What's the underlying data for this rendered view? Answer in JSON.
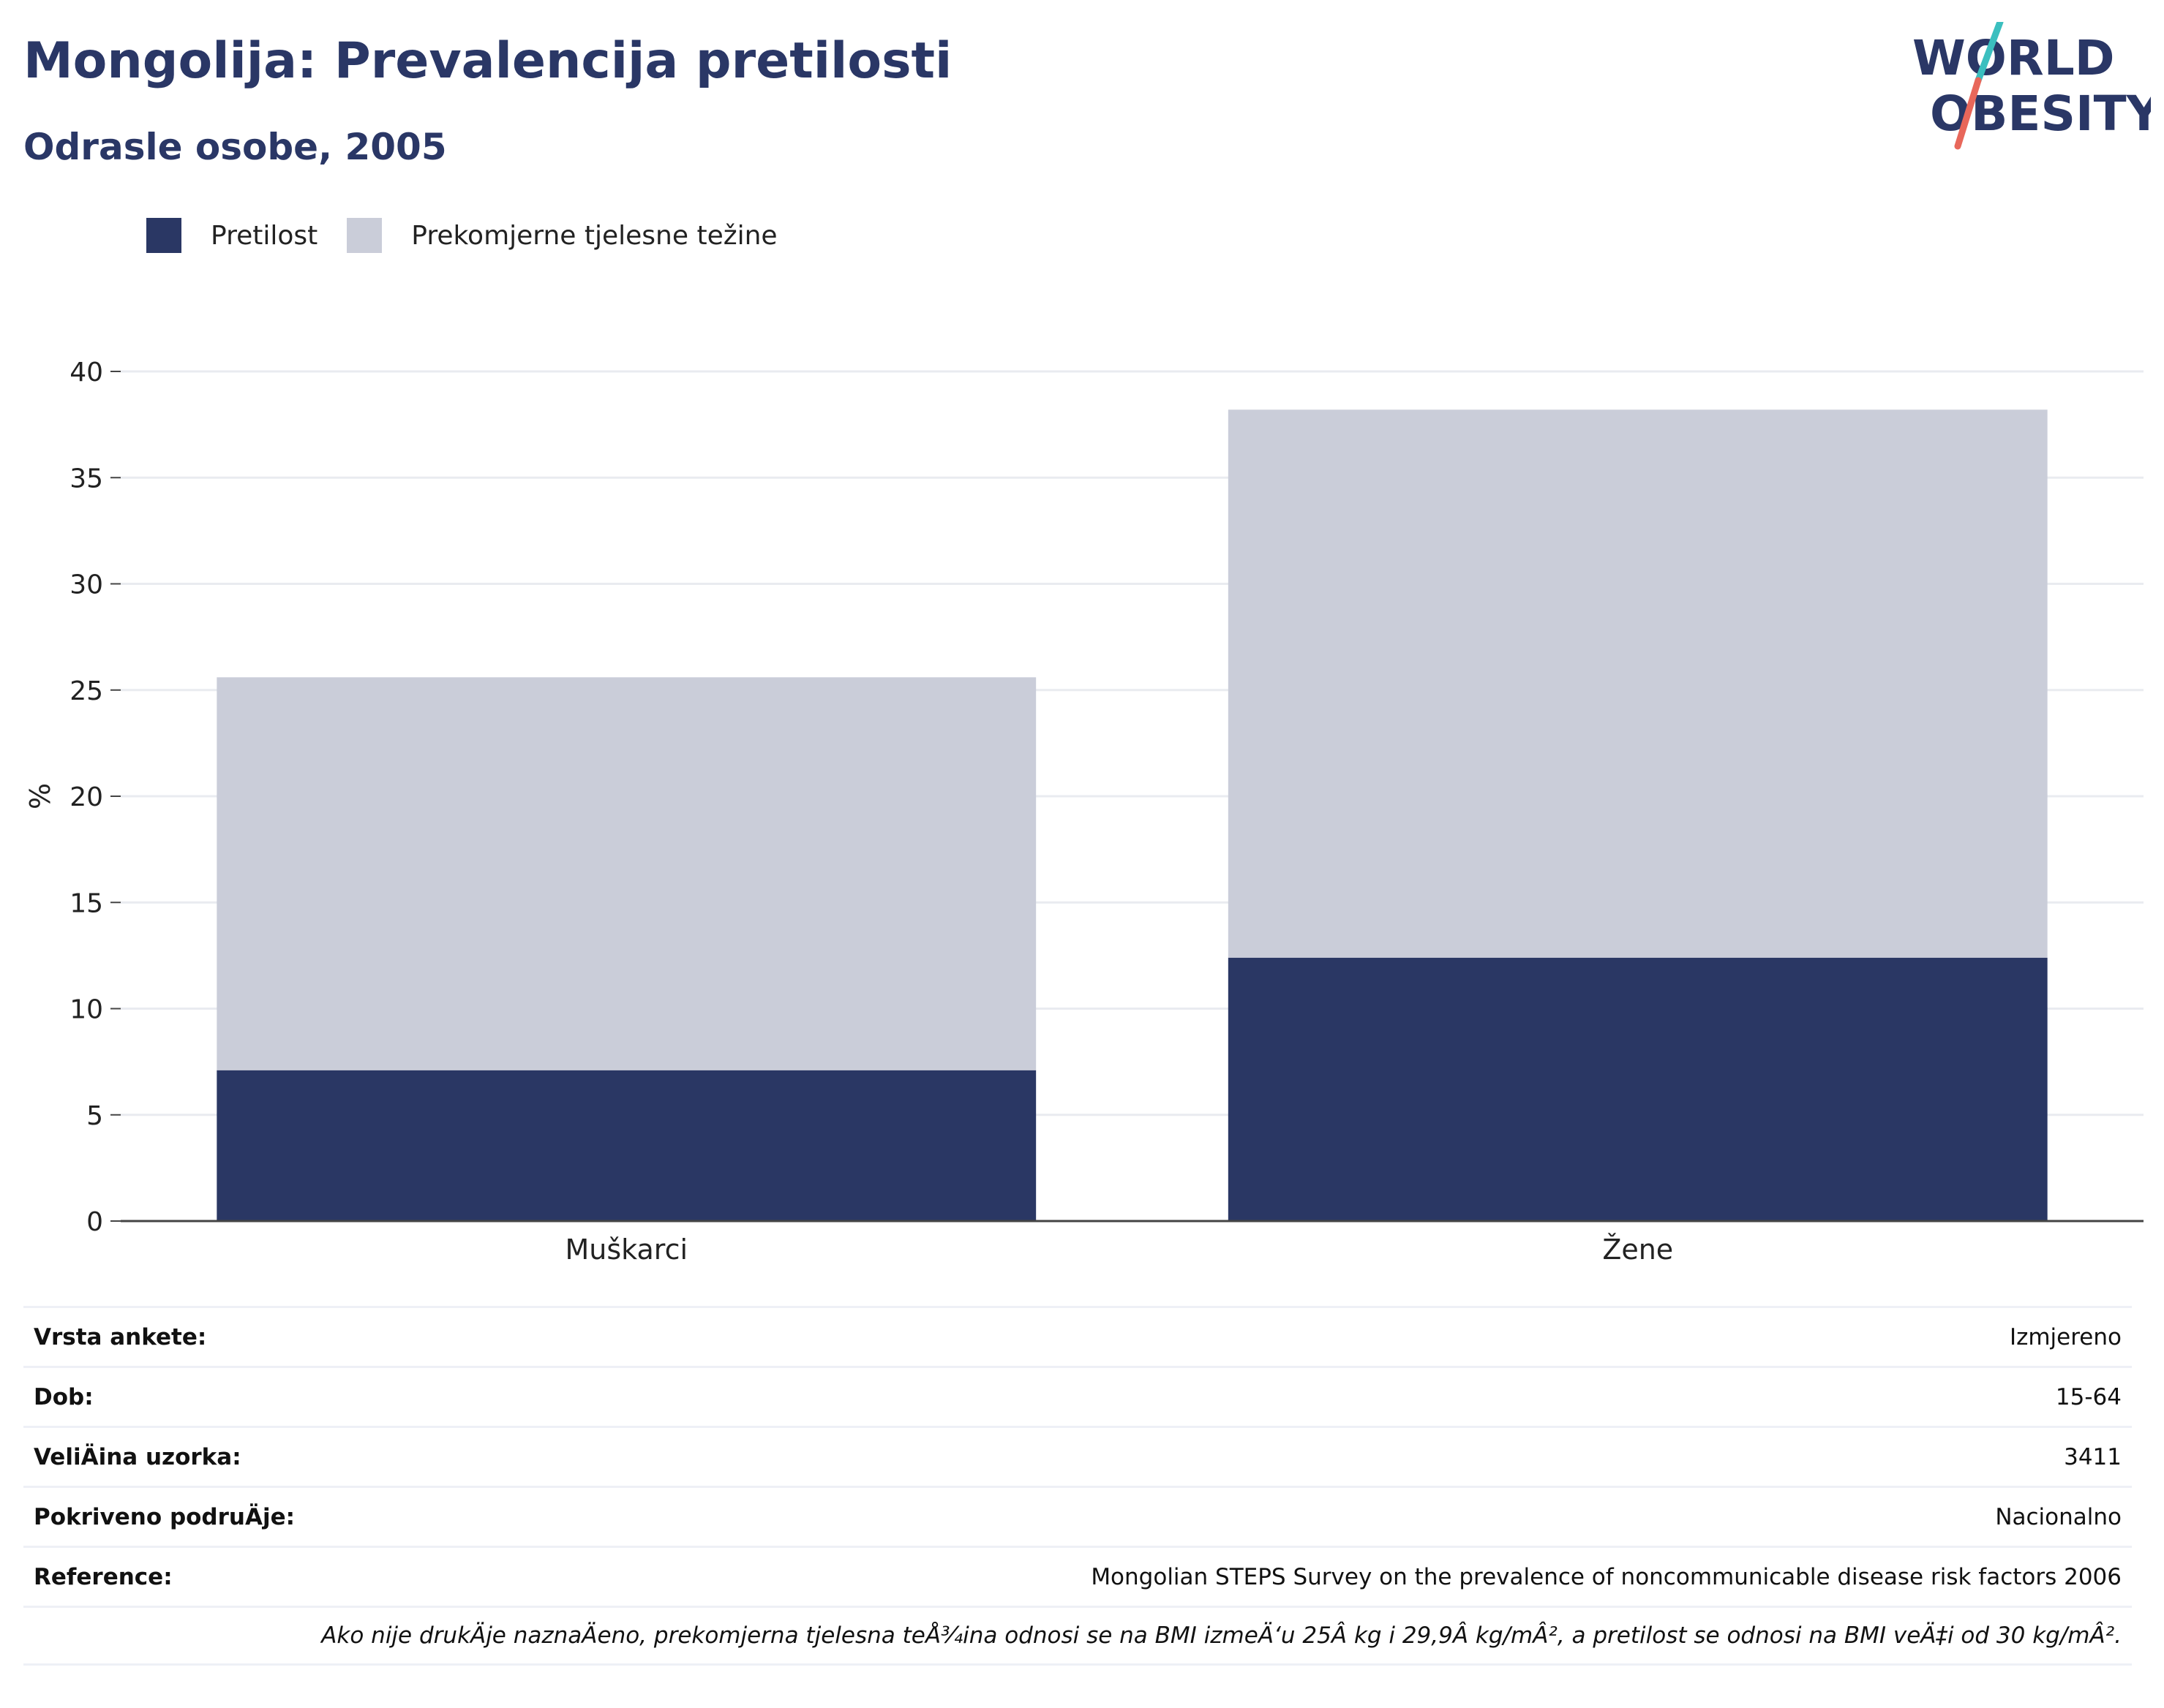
{
  "header": {
    "title": "Mongolija: Prevalencija pretilosti",
    "subtitle": "Odrasle osobe, 2005"
  },
  "logo": {
    "line1": "WORLD",
    "line2": "OBESITY",
    "colors": {
      "text": "#2a3766",
      "slash_teal": "#3bbfbf",
      "slash_red": "#e8675a"
    }
  },
  "legend": [
    {
      "label": "Pretilost",
      "color": "#2a3764"
    },
    {
      "label": "Prekomjerne tjelesne težine",
      "color": "#cacdd9"
    }
  ],
  "chart_data": {
    "type": "bar",
    "stacked": true,
    "categories": [
      "Muškarci",
      "Žene"
    ],
    "series": [
      {
        "name": "Pretilost",
        "values": [
          7.1,
          12.4
        ],
        "color": "#2a3764"
      },
      {
        "name": "Prekomjerne tjelesne težine",
        "values": [
          18.5,
          25.8
        ],
        "color": "#cacdd9"
      }
    ],
    "ylabel": "%",
    "ylim": [
      0,
      40
    ],
    "yticks": [
      "0",
      "5",
      "10",
      "15",
      "20",
      "25",
      "30",
      "35",
      "40"
    ],
    "grid": true,
    "legend_position": "top-left"
  },
  "info": {
    "rows": [
      {
        "label": "Vrsta ankete:",
        "value": "Izmjereno"
      },
      {
        "label": "Dob:",
        "value": "15-64"
      },
      {
        "label": "VeliÄ\u001fina uzorka:",
        "value": "3411"
      },
      {
        "label": "Pokriveno podruÄ\u001fje:",
        "value": "Nacionalno"
      },
      {
        "label": "Reference:",
        "value": "Mongolian STEPS Survey on the prevalence of noncommunicable disease risk factors 2006"
      }
    ],
    "note": "Ako nije drukÄ\u001fje naznaÄ\u001feno, prekomjerna tjelesna teÅ¾ina odnosi se na BMI izmeÄ‘u 25Â kg i 29,9Â kg/mÂ², a pretilost se odnosi na BMI veÄ‡i od 30 kg/mÂ²."
  }
}
